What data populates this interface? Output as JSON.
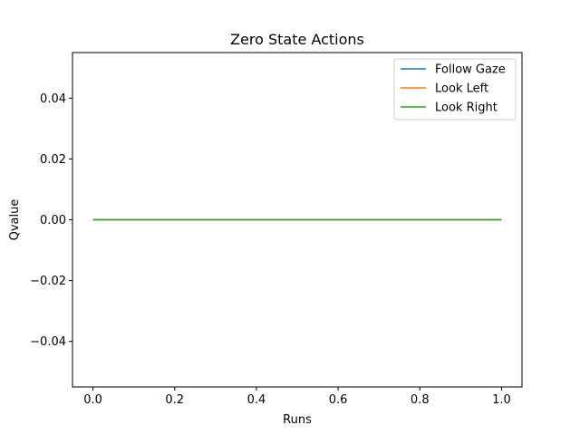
{
  "chart_data": {
    "type": "line",
    "title": "Zero State Actions",
    "xlabel": "Runs",
    "ylabel": "Qvalue",
    "xlim": [
      -0.05,
      1.05
    ],
    "ylim": [
      -0.055,
      0.055
    ],
    "x_ticks": [
      0.0,
      0.2,
      0.4,
      0.6,
      0.8,
      1.0
    ],
    "x_tick_labels": [
      "0.0",
      "0.2",
      "0.4",
      "0.6",
      "0.8",
      "1.0"
    ],
    "y_ticks": [
      -0.04,
      -0.02,
      0.0,
      0.02,
      0.04
    ],
    "y_tick_labels": [
      "−0.04",
      "−0.02",
      "0.00",
      "0.02",
      "0.04"
    ],
    "grid": false,
    "legend_position": "top-right",
    "series": [
      {
        "name": "Follow Gaze",
        "color": "#1f77b4",
        "x": [
          0,
          1
        ],
        "y": [
          0,
          0
        ]
      },
      {
        "name": "Look Left",
        "color": "#ff7f0e",
        "x": [
          0,
          1
        ],
        "y": [
          0,
          0
        ]
      },
      {
        "name": "Look Right",
        "color": "#2ca02c",
        "x": [
          0,
          1
        ],
        "y": [
          0,
          0
        ]
      }
    ]
  }
}
